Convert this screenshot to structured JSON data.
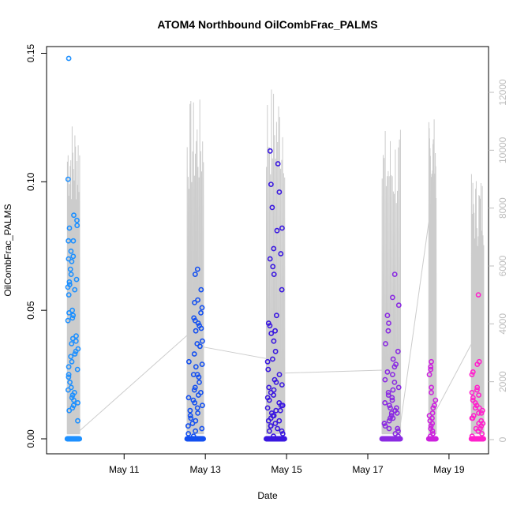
{
  "chart_data": {
    "type": "scatter",
    "title": "ATOM4 Northbound OilCombFrac_PALMS",
    "xlabel": "Date",
    "ylabel": "OilCombFrac_PALMS",
    "x_range_days": [
      9.45,
      19.75
    ],
    "ylim": [
      0,
      0.15
    ],
    "y2lim": [
      0,
      12500
    ],
    "x_ticks": [
      {
        "day": 11,
        "label": "May 11"
      },
      {
        "day": 13,
        "label": "May 13"
      },
      {
        "day": 15,
        "label": "May 15"
      },
      {
        "day": 17,
        "label": "May 17"
      },
      {
        "day": 19,
        "label": "May 19"
      }
    ],
    "y_ticks": [
      {
        "value": 0,
        "label": "0.00"
      },
      {
        "value": 0.05,
        "label": "0.05"
      },
      {
        "value": 0.1,
        "label": "0.10"
      },
      {
        "value": 0.15,
        "label": "0.15"
      }
    ],
    "y2_ticks": [
      {
        "value": 0,
        "label": "0"
      },
      {
        "value": 2000,
        "label": "2000"
      },
      {
        "value": 4000,
        "label": "4000"
      },
      {
        "value": 6000,
        "label": "6000"
      },
      {
        "value": 8000,
        "label": "8000"
      },
      {
        "value": 10000,
        "label": "10000"
      },
      {
        "value": 12000,
        "label": "12000"
      }
    ],
    "colors": {
      "flight1": "#1e90ff",
      "flight2": "#1450f0",
      "flight3": "#3a18e0",
      "flight4": "#8b2be2",
      "flight5": "#cc22dd",
      "flight6": "#ff22cc",
      "altitude_line": "#cccccc"
    },
    "flights": [
      {
        "start": 9.6,
        "end": 9.9,
        "max_alt": 11200,
        "nonzero": [
          0.148,
          0.101,
          0.087,
          0.085,
          0.083,
          0.082,
          0.077,
          0.077,
          0.073,
          0.071,
          0.07,
          0.069,
          0.066,
          0.064,
          0.062,
          0.061,
          0.06,
          0.059,
          0.058,
          0.056,
          0.05,
          0.049,
          0.048,
          0.047,
          0.046,
          0.04,
          0.039,
          0.038,
          0.037,
          0.035,
          0.034,
          0.033,
          0.032,
          0.03,
          0.028,
          0.027,
          0.025,
          0.024,
          0.022,
          0.02,
          0.019,
          0.018,
          0.017,
          0.016,
          0.015,
          0.014,
          0.013,
          0.012,
          0.011,
          0.007
        ],
        "zero_count": 30
      },
      {
        "start": 12.55,
        "end": 12.95,
        "max_alt": 11800,
        "nonzero": [
          0.066,
          0.064,
          0.058,
          0.054,
          0.053,
          0.051,
          0.049,
          0.047,
          0.046,
          0.045,
          0.044,
          0.043,
          0.042,
          0.038,
          0.037,
          0.036,
          0.033,
          0.03,
          0.029,
          0.028,
          0.025,
          0.025,
          0.024,
          0.022,
          0.02,
          0.019,
          0.018,
          0.017,
          0.016,
          0.015,
          0.014,
          0.013,
          0.012,
          0.011,
          0.01,
          0.009,
          0.008,
          0.007,
          0.006,
          0.005,
          0.004,
          0.003,
          0.002,
          0.001
        ],
        "zero_count": 40
      },
      {
        "start": 14.5,
        "end": 14.95,
        "max_alt": 12350,
        "nonzero": [
          0.112,
          0.107,
          0.099,
          0.096,
          0.09,
          0.082,
          0.081,
          0.074,
          0.072,
          0.07,
          0.067,
          0.064,
          0.058,
          0.048,
          0.045,
          0.044,
          0.042,
          0.041,
          0.038,
          0.034,
          0.031,
          0.03,
          0.027,
          0.025,
          0.023,
          0.022,
          0.021,
          0.02,
          0.019,
          0.018,
          0.017,
          0.016,
          0.015,
          0.014,
          0.013,
          0.012,
          0.011,
          0.01,
          0.009,
          0.008,
          0.007,
          0.006,
          0.005,
          0.004,
          0.003,
          0.002,
          0.001,
          0.013,
          0.011,
          0.009,
          0.007,
          0.005,
          0.003
        ],
        "zero_count": 45
      },
      {
        "start": 17.35,
        "end": 17.8,
        "max_alt": 10800,
        "nonzero": [
          0.064,
          0.055,
          0.052,
          0.048,
          0.045,
          0.042,
          0.037,
          0.034,
          0.031,
          0.029,
          0.028,
          0.026,
          0.025,
          0.023,
          0.022,
          0.02,
          0.019,
          0.018,
          0.017,
          0.016,
          0.015,
          0.014,
          0.013,
          0.012,
          0.011,
          0.01,
          0.009,
          0.008,
          0.007,
          0.006,
          0.005,
          0.004,
          0.003,
          0.002,
          0.001,
          0.012,
          0.01,
          0.008,
          0.006,
          0.004
        ],
        "zero_count": 30
      },
      {
        "start": 18.5,
        "end": 18.68,
        "max_alt": 11200,
        "nonzero": [
          0.03,
          0.028,
          0.027,
          0.025,
          0.02,
          0.018,
          0.015,
          0.013,
          0.012,
          0.01,
          0.009,
          0.008,
          0.007,
          0.006,
          0.005,
          0.004,
          0.003,
          0.002,
          0.001
        ],
        "zero_count": 12
      },
      {
        "start": 19.55,
        "end": 19.85,
        "max_alt": 9200,
        "nonzero": [
          0.056,
          0.03,
          0.029,
          0.026,
          0.025,
          0.02,
          0.019,
          0.018,
          0.017,
          0.016,
          0.015,
          0.014,
          0.013,
          0.012,
          0.011,
          0.01,
          0.009,
          0.008,
          0.007,
          0.006,
          0.005,
          0.004,
          0.003,
          0.002,
          0.001,
          0.012,
          0.01,
          0.008,
          0.006,
          0.004
        ],
        "zero_count": 30
      }
    ],
    "transit_line": [
      [
        9.9,
        300
      ],
      [
        12.55,
        3600
      ],
      [
        12.95,
        3200
      ],
      [
        14.5,
        2800
      ],
      [
        14.95,
        2300
      ],
      [
        17.35,
        2400
      ],
      [
        17.8,
        500
      ],
      [
        18.5,
        7500
      ],
      [
        18.68,
        1000
      ],
      [
        19.55,
        3300
      ]
    ]
  }
}
